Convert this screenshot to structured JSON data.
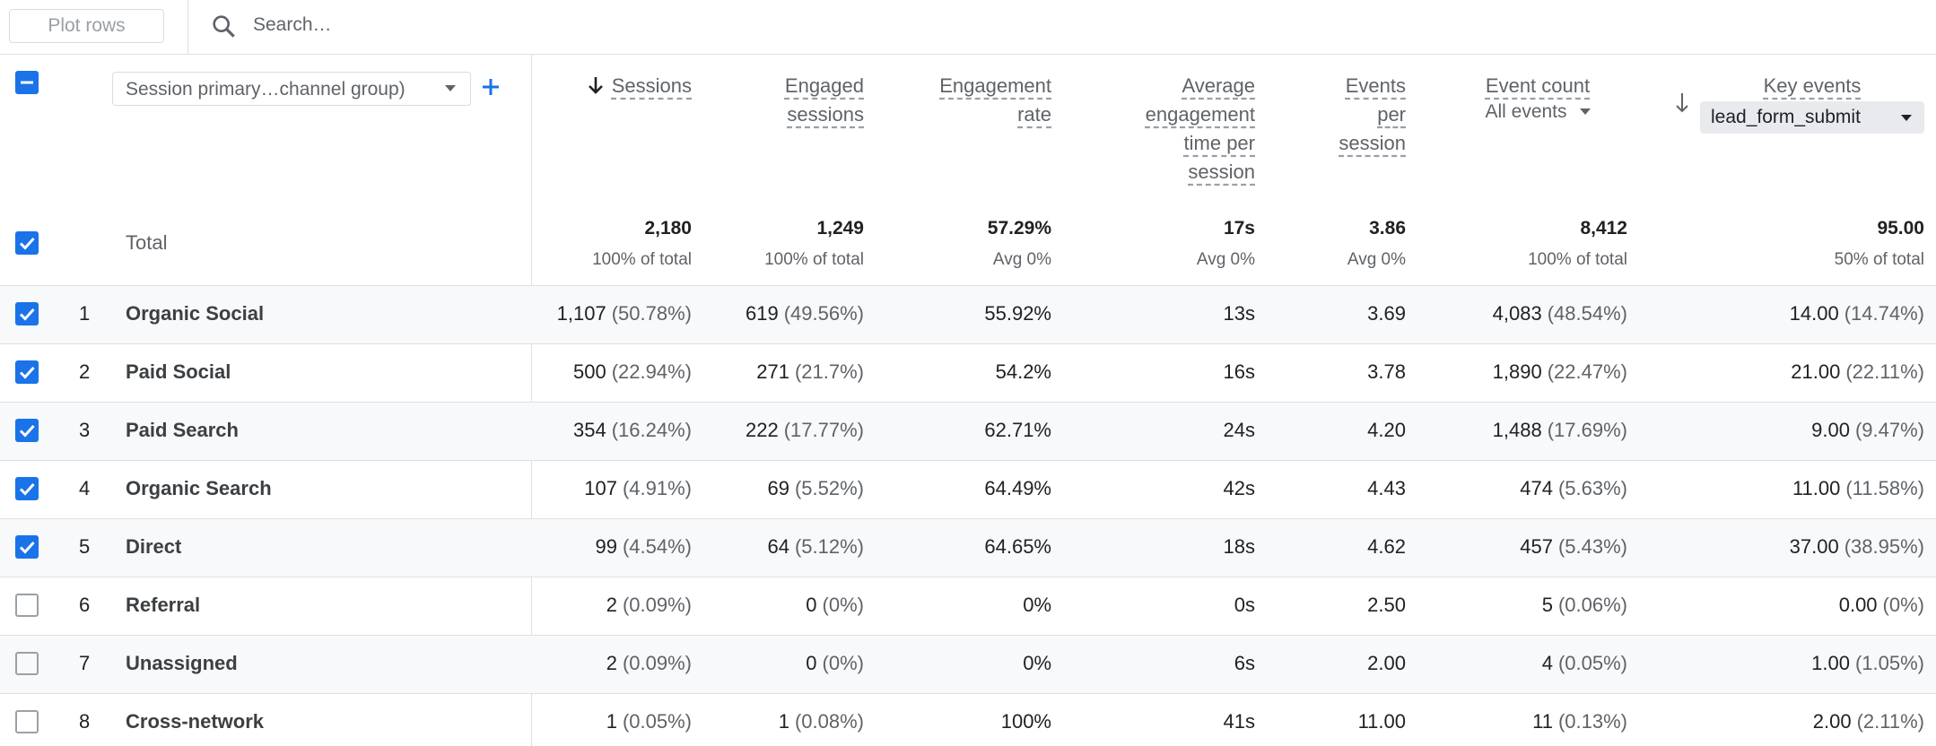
{
  "toolbar": {
    "plot_rows": "Plot rows",
    "search_placeholder": "Search…"
  },
  "table": {
    "select_all": "partial",
    "dimension_selector": "Session primary…channel group)",
    "columns": [
      {
        "label": "Sessions",
        "sorted": true
      },
      {
        "label": "Engaged sessions"
      },
      {
        "label": "Engagement rate"
      },
      {
        "label": "Average engagement time per session"
      },
      {
        "label": "Events per session"
      },
      {
        "label": "Event count",
        "filter": "All events"
      },
      {
        "label": "Key events",
        "filter": "lead_form_submit"
      }
    ],
    "total": {
      "label": "Total",
      "checked": true,
      "cells": [
        [
          "2,180",
          "100% of total"
        ],
        [
          "1,249",
          "100% of total"
        ],
        [
          "57.29%",
          "Avg 0%"
        ],
        [
          "17s",
          "Avg 0%"
        ],
        [
          "3.86",
          "Avg 0%"
        ],
        [
          "8,412",
          "100% of total"
        ],
        [
          "95.00",
          "50% of total"
        ]
      ]
    },
    "rows": [
      {
        "index": 1,
        "name": "Organic Social",
        "checked": true,
        "cells": [
          [
            "1,107",
            "(50.78%)"
          ],
          [
            "619",
            "(49.56%)"
          ],
          [
            "55.92%"
          ],
          [
            "13s"
          ],
          [
            "3.69"
          ],
          [
            "4,083",
            "(48.54%)"
          ],
          [
            "14.00",
            "(14.74%)"
          ]
        ]
      },
      {
        "index": 2,
        "name": "Paid Social",
        "checked": true,
        "cells": [
          [
            "500",
            "(22.94%)"
          ],
          [
            "271",
            "(21.7%)"
          ],
          [
            "54.2%"
          ],
          [
            "16s"
          ],
          [
            "3.78"
          ],
          [
            "1,890",
            "(22.47%)"
          ],
          [
            "21.00",
            "(22.11%)"
          ]
        ]
      },
      {
        "index": 3,
        "name": "Paid Search",
        "checked": true,
        "cells": [
          [
            "354",
            "(16.24%)"
          ],
          [
            "222",
            "(17.77%)"
          ],
          [
            "62.71%"
          ],
          [
            "24s"
          ],
          [
            "4.20"
          ],
          [
            "1,488",
            "(17.69%)"
          ],
          [
            "9.00",
            "(9.47%)"
          ]
        ]
      },
      {
        "index": 4,
        "name": "Organic Search",
        "checked": true,
        "cells": [
          [
            "107",
            "(4.91%)"
          ],
          [
            "69",
            "(5.52%)"
          ],
          [
            "64.49%"
          ],
          [
            "42s"
          ],
          [
            "4.43"
          ],
          [
            "474",
            "(5.63%)"
          ],
          [
            "11.00",
            "(11.58%)"
          ]
        ]
      },
      {
        "index": 5,
        "name": "Direct",
        "checked": true,
        "cells": [
          [
            "99",
            "(4.54%)"
          ],
          [
            "64",
            "(5.12%)"
          ],
          [
            "64.65%"
          ],
          [
            "18s"
          ],
          [
            "4.62"
          ],
          [
            "457",
            "(5.43%)"
          ],
          [
            "37.00",
            "(38.95%)"
          ]
        ]
      },
      {
        "index": 6,
        "name": "Referral",
        "checked": false,
        "cells": [
          [
            "2",
            "(0.09%)"
          ],
          [
            "0",
            "(0%)"
          ],
          [
            "0%"
          ],
          [
            "0s"
          ],
          [
            "2.50"
          ],
          [
            "5",
            "(0.06%)"
          ],
          [
            "0.00",
            "(0%)"
          ]
        ]
      },
      {
        "index": 7,
        "name": "Unassigned",
        "checked": false,
        "cells": [
          [
            "2",
            "(0.09%)"
          ],
          [
            "0",
            "(0%)"
          ],
          [
            "0%"
          ],
          [
            "6s"
          ],
          [
            "2.00"
          ],
          [
            "4",
            "(0.05%)"
          ],
          [
            "1.00",
            "(1.05%)"
          ]
        ]
      },
      {
        "index": 8,
        "name": "Cross-network",
        "checked": false,
        "cells": [
          [
            "1",
            "(0.05%)"
          ],
          [
            "1",
            "(0.08%)"
          ],
          [
            "100%"
          ],
          [
            "41s"
          ],
          [
            "11.00"
          ],
          [
            "11",
            "(0.13%)"
          ],
          [
            "2.00",
            "(2.11%)"
          ]
        ]
      }
    ]
  }
}
